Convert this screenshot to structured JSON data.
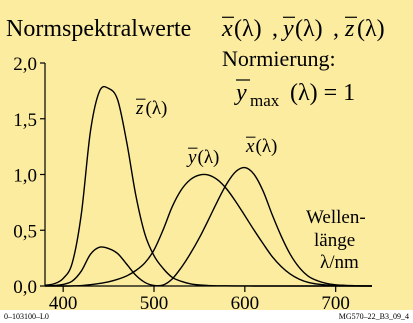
{
  "chart_data": {
    "type": "line",
    "title": "Normspektralwerte",
    "title_functions": [
      "x(λ)",
      "y(λ)",
      "z(λ)"
    ],
    "annotation": {
      "line1": "Normierung:",
      "lhs_base": "y",
      "lhs_sub": "max",
      "rhs": "(λ) = 1"
    },
    "xlabel": {
      "line1": "Wellen-",
      "line2": "länge",
      "line3": "λ/nm"
    },
    "xlim": [
      380,
      740
    ],
    "ylim": [
      0,
      2.0
    ],
    "x_ticks": [
      400,
      500,
      600,
      700
    ],
    "y_ticks": [
      "0,0",
      "0,5",
      "1,0",
      "1,5",
      "2,0"
    ],
    "y_tick_values": [
      0,
      0.5,
      1.0,
      1.5,
      2.0
    ],
    "grid": false,
    "curve_labels": [
      "z(λ)",
      "y(λ)",
      "x(λ)"
    ],
    "x": [
      380,
      390,
      400,
      410,
      420,
      430,
      440,
      450,
      460,
      470,
      480,
      490,
      500,
      510,
      520,
      530,
      540,
      550,
      560,
      570,
      580,
      590,
      600,
      610,
      620,
      630,
      640,
      650,
      660,
      670,
      680,
      690,
      700,
      710,
      720,
      730,
      740
    ],
    "series": [
      {
        "name": "x(λ)",
        "values": [
          0.001,
          0.004,
          0.014,
          0.044,
          0.134,
          0.284,
          0.348,
          0.336,
          0.291,
          0.195,
          0.096,
          0.032,
          0.005,
          0.009,
          0.063,
          0.165,
          0.29,
          0.433,
          0.595,
          0.762,
          0.916,
          1.026,
          1.062,
          1.003,
          0.854,
          0.642,
          0.448,
          0.284,
          0.165,
          0.087,
          0.047,
          0.023,
          0.011,
          0.006,
          0.003,
          0.001,
          0.001
        ]
      },
      {
        "name": "y(λ)",
        "values": [
          0.0,
          0.0,
          0.0,
          0.001,
          0.004,
          0.012,
          0.023,
          0.038,
          0.06,
          0.091,
          0.139,
          0.208,
          0.323,
          0.503,
          0.71,
          0.862,
          0.954,
          0.995,
          0.995,
          0.952,
          0.87,
          0.757,
          0.631,
          0.503,
          0.381,
          0.265,
          0.175,
          0.107,
          0.061,
          0.032,
          0.017,
          0.008,
          0.004,
          0.002,
          0.001,
          0.001,
          0.0
        ]
      },
      {
        "name": "z(λ)",
        "values": [
          0.007,
          0.02,
          0.068,
          0.207,
          0.646,
          1.386,
          1.747,
          1.772,
          1.669,
          1.288,
          0.813,
          0.465,
          0.272,
          0.158,
          0.078,
          0.042,
          0.02,
          0.009,
          0.004,
          0.002,
          0.002,
          0.001,
          0.001,
          0.0,
          0.0,
          0.0,
          0.0,
          0.0,
          0.0,
          0.0,
          0.0,
          0.0,
          0.0,
          0.0,
          0.0,
          0.0,
          0.0
        ]
      }
    ]
  },
  "footer": {
    "left": "0–103100–L0",
    "right": "MG570–22_B3_09_4"
  },
  "colors": {
    "background": "#fbeca0",
    "line": "#000000"
  }
}
